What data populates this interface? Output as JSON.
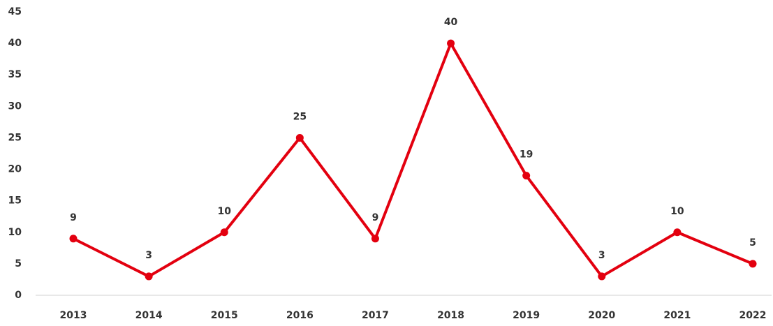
{
  "chart_data": {
    "type": "line",
    "categories": [
      "2013",
      "2014",
      "2015",
      "2016",
      "2017",
      "2018",
      "2019",
      "2020",
      "2021",
      "2022"
    ],
    "values": [
      9,
      3,
      10,
      25,
      9,
      40,
      19,
      3,
      10,
      5
    ],
    "color": "#e3000f",
    "ylim": [
      0,
      45
    ],
    "yticks": [
      0,
      5,
      10,
      15,
      20,
      25,
      30,
      35,
      40,
      45
    ],
    "grid": false
  }
}
